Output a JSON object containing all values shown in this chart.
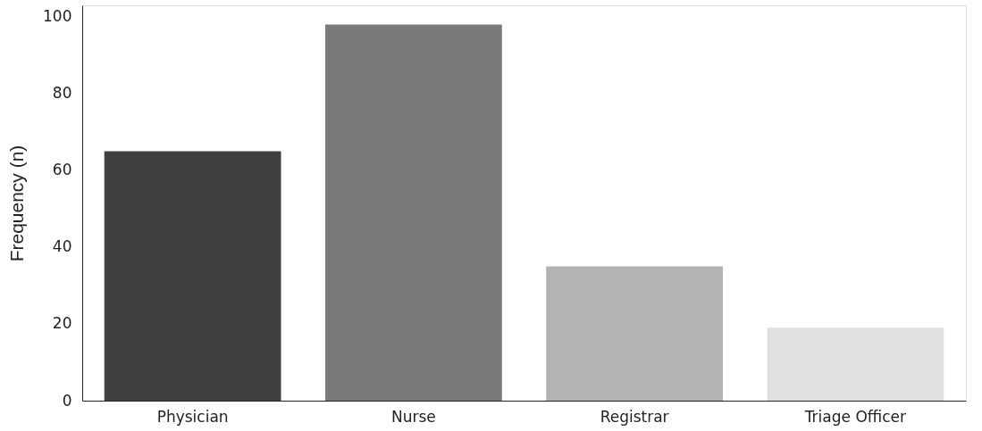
{
  "chart_data": {
    "type": "bar",
    "ylabel": "Frequency (n)",
    "categories": [
      "Physician",
      "Nurse",
      "Registrar",
      "Triage Officer"
    ],
    "values": [
      65,
      98,
      35,
      19
    ],
    "colors": [
      "#404040",
      "#7a7a7a",
      "#b3b3b3",
      "#e0e0e0"
    ],
    "ylim": [
      0,
      103
    ],
    "yticks": [
      0,
      20,
      40,
      60,
      80,
      100
    ],
    "grid": false,
    "legend": false
  }
}
